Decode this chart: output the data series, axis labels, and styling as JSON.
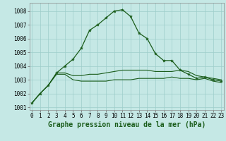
{
  "title": "Graphe pression niveau de la mer (hPa)",
  "xlabel_ticks": [
    0,
    1,
    2,
    3,
    4,
    5,
    6,
    7,
    8,
    9,
    10,
    11,
    12,
    13,
    14,
    15,
    16,
    17,
    18,
    19,
    20,
    21,
    22,
    23
  ],
  "ylim": [
    1000.8,
    1008.6
  ],
  "yticks": [
    1001,
    1002,
    1003,
    1004,
    1005,
    1006,
    1007,
    1008
  ],
  "background_color": "#c5e8e5",
  "grid_color": "#9dceca",
  "line_color": "#1a5c1a",
  "series_main": [
    1001.3,
    1002.0,
    1002.6,
    1003.5,
    1004.0,
    1004.5,
    1005.3,
    1006.6,
    1007.0,
    1007.5,
    1008.0,
    1008.1,
    1007.6,
    1006.4,
    1006.0,
    1004.9,
    1004.4,
    1004.4,
    1003.7,
    1003.4,
    1003.1,
    1003.2,
    1003.0,
    1002.9
  ],
  "series_low": [
    1001.3,
    1002.0,
    1002.6,
    1003.4,
    1003.4,
    1003.0,
    1002.9,
    1002.9,
    1002.9,
    1002.9,
    1003.0,
    1003.0,
    1003.0,
    1003.1,
    1003.1,
    1003.1,
    1003.1,
    1003.2,
    1003.1,
    1003.1,
    1003.0,
    1003.1,
    1002.9,
    1002.8
  ],
  "series_high": [
    1001.3,
    1002.0,
    1002.6,
    1003.5,
    1003.5,
    1003.3,
    1003.3,
    1003.4,
    1003.4,
    1003.5,
    1003.6,
    1003.7,
    1003.7,
    1003.7,
    1003.7,
    1003.6,
    1003.6,
    1003.6,
    1003.7,
    1003.6,
    1003.3,
    1003.2,
    1003.1,
    1003.0
  ],
  "title_fontsize": 7,
  "tick_fontsize": 5.5,
  "figsize": [
    3.2,
    2.0
  ],
  "dpi": 100
}
